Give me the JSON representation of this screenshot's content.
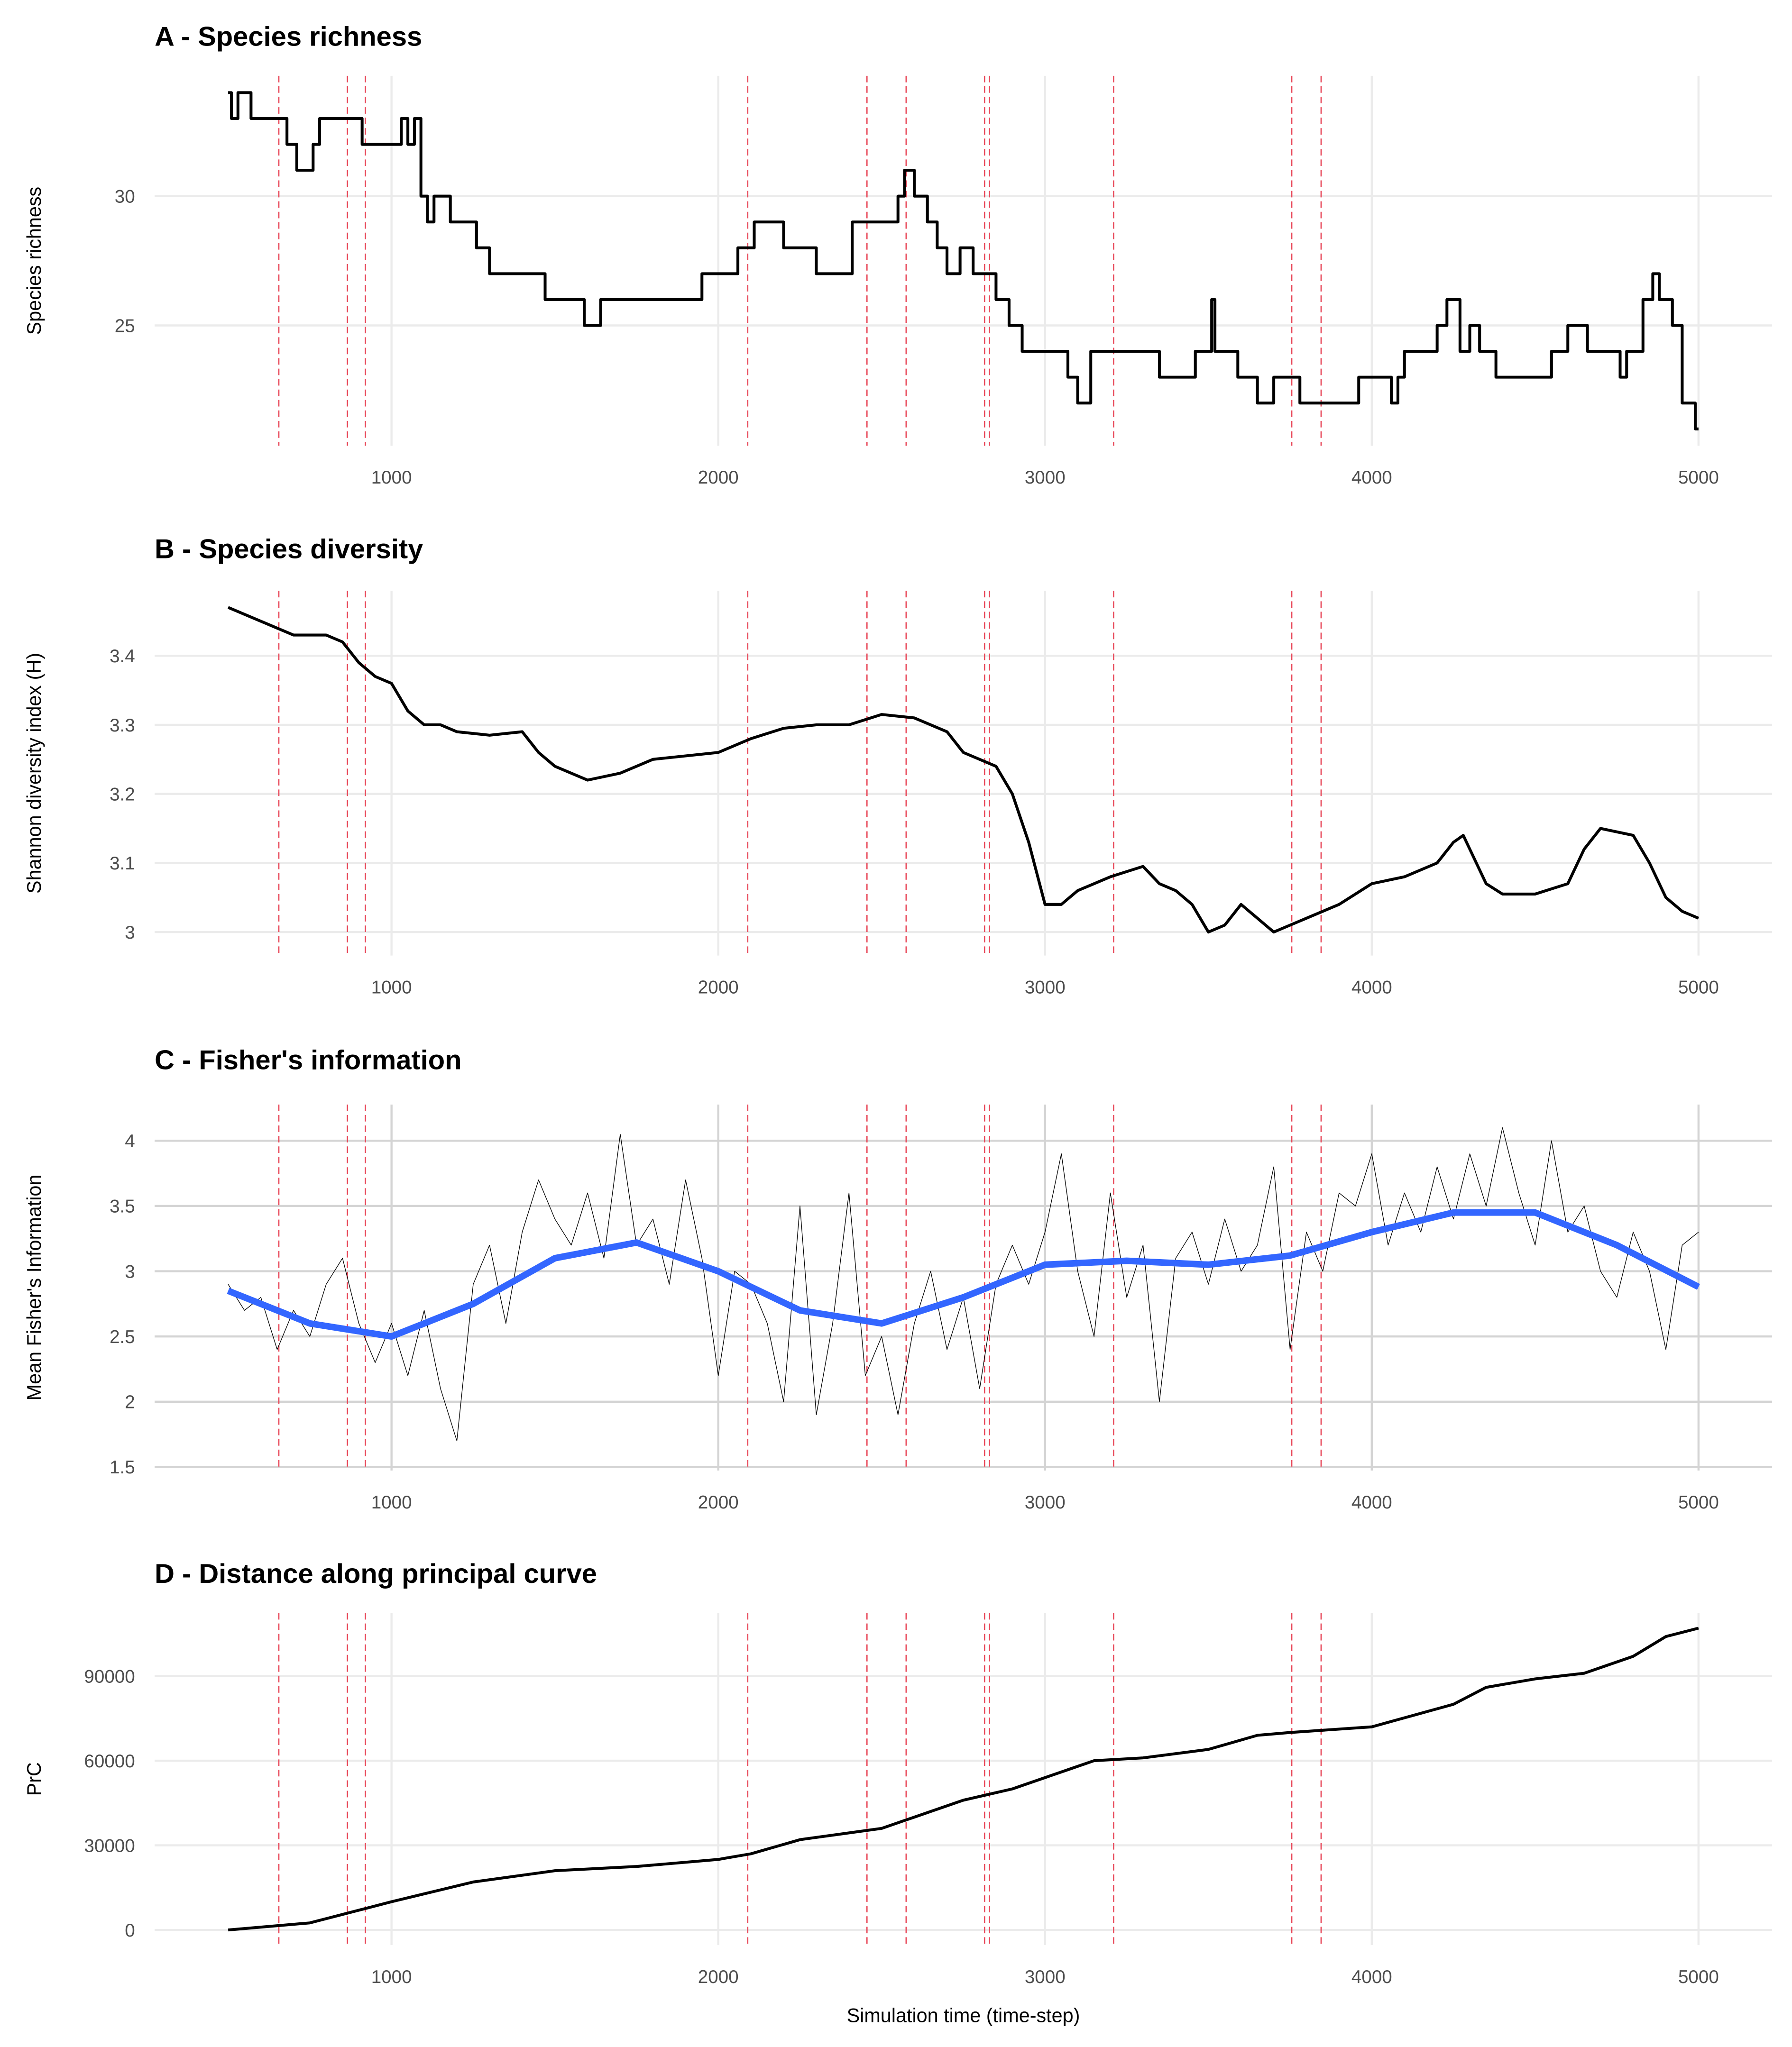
{
  "chart_data": [
    {
      "type": "step",
      "title": "A - Species richness",
      "y_label": "Species richness",
      "x": [
        500,
        510,
        530,
        570,
        680,
        710,
        760,
        780,
        890,
        910,
        1030,
        1050,
        1070,
        1090,
        1110,
        1130,
        1180,
        1260,
        1300,
        1470,
        1590,
        1640,
        1950,
        2060,
        2110,
        2200,
        2300,
        2410,
        2550,
        2570,
        2600,
        2640,
        2670,
        2700,
        2740,
        2780,
        2850,
        2890,
        2930,
        3010,
        3070,
        3100,
        3140,
        3350,
        3460,
        3510,
        3520,
        3590,
        3650,
        3700,
        3780,
        3960,
        4060,
        4080,
        4100,
        4200,
        4230,
        4270,
        4300,
        4330,
        4380,
        4550,
        4600,
        4660,
        4760,
        4780,
        4830,
        4860,
        4880,
        4920,
        4950,
        4990,
        5000
      ],
      "series": [
        {
          "color": "#000000",
          "values": [
            34,
            33,
            34,
            33,
            32,
            31,
            32,
            33,
            33,
            32,
            33,
            32,
            33,
            30,
            29,
            30,
            29,
            28,
            27,
            26,
            25,
            26,
            27,
            28,
            29,
            28,
            27,
            29,
            30,
            31,
            30,
            29,
            28,
            27,
            28,
            27,
            26,
            25,
            24,
            24,
            23,
            22,
            24,
            23,
            24,
            26,
            24,
            23,
            22,
            23,
            22,
            23,
            22,
            23,
            24,
            25,
            26,
            24,
            25,
            24,
            23,
            24,
            25,
            24,
            23,
            24,
            26,
            27,
            26,
            25,
            22,
            21,
            21
          ]
        }
      ],
      "xlim": [
        275,
        5225
      ],
      "xticks": [
        1000,
        2000,
        3000,
        4000,
        5000
      ],
      "ylim": [
        20.35,
        34.65
      ],
      "yticks": [
        25,
        30
      ],
      "vlines": {
        "color": "#e8495a",
        "x": [
          655,
          865,
          920,
          2090,
          2455,
          2575,
          2815,
          2830,
          3210,
          3755,
          3845
        ]
      }
    },
    {
      "type": "line",
      "title": "B - Species diversity",
      "y_label": "Shannon diversity index (H)",
      "x": [
        500,
        600,
        700,
        800,
        850,
        900,
        950,
        1000,
        1050,
        1100,
        1150,
        1200,
        1300,
        1400,
        1450,
        1500,
        1600,
        1700,
        1800,
        1900,
        2000,
        2100,
        2200,
        2300,
        2400,
        2500,
        2600,
        2700,
        2750,
        2850,
        2900,
        2950,
        3000,
        3050,
        3100,
        3200,
        3300,
        3350,
        3400,
        3450,
        3500,
        3550,
        3600,
        3650,
        3700,
        3750,
        3800,
        3900,
        4000,
        4100,
        4200,
        4250,
        4280,
        4300,
        4350,
        4400,
        4500,
        4600,
        4650,
        4700,
        4800,
        4850,
        4900,
        4950,
        5000
      ],
      "series": [
        {
          "color": "#000000",
          "values": [
            3.47,
            3.45,
            3.43,
            3.43,
            3.42,
            3.39,
            3.37,
            3.36,
            3.32,
            3.3,
            3.3,
            3.29,
            3.285,
            3.29,
            3.26,
            3.24,
            3.22,
            3.23,
            3.25,
            3.255,
            3.26,
            3.28,
            3.295,
            3.3,
            3.3,
            3.315,
            3.31,
            3.29,
            3.26,
            3.24,
            3.2,
            3.13,
            3.04,
            3.04,
            3.06,
            3.08,
            3.095,
            3.07,
            3.06,
            3.04,
            3.0,
            3.01,
            3.04,
            3.02,
            3.0,
            3.01,
            3.02,
            3.04,
            3.07,
            3.08,
            3.1,
            3.13,
            3.14,
            3.12,
            3.07,
            3.055,
            3.055,
            3.07,
            3.12,
            3.15,
            3.14,
            3.1,
            3.05,
            3.03,
            3.02
          ]
        }
      ],
      "xlim": [
        275,
        5225
      ],
      "xticks": [
        1000,
        2000,
        3000,
        4000,
        5000
      ],
      "ylim": [
        2.966,
        3.494
      ],
      "yticks": [
        3.0,
        3.1,
        3.2,
        3.3,
        3.4
      ],
      "vlines": {
        "color": "#e8495a",
        "x": [
          655,
          865,
          920,
          2090,
          2455,
          2575,
          2815,
          2830,
          3210,
          3755,
          3845
        ]
      }
    },
    {
      "type": "line",
      "title": "C - Fisher's information",
      "y_label": "Mean Fisher's Information",
      "series": [
        {
          "color": "#000000",
          "width": 0.5,
          "x": [
            500,
            550,
            600,
            650,
            700,
            750,
            800,
            850,
            900,
            950,
            1000,
            1050,
            1100,
            1150,
            1200,
            1250,
            1300,
            1350,
            1400,
            1450,
            1500,
            1550,
            1600,
            1650,
            1700,
            1750,
            1800,
            1850,
            1900,
            1950,
            2000,
            2050,
            2100,
            2150,
            2200,
            2250,
            2300,
            2350,
            2400,
            2450,
            2500,
            2550,
            2600,
            2650,
            2700,
            2750,
            2800,
            2850,
            2900,
            2950,
            3000,
            3050,
            3100,
            3150,
            3200,
            3250,
            3300,
            3350,
            3400,
            3450,
            3500,
            3550,
            3600,
            3650,
            3700,
            3750,
            3800,
            3850,
            3900,
            3950,
            4000,
            4050,
            4100,
            4150,
            4200,
            4250,
            4300,
            4350,
            4400,
            4450,
            4500,
            4550,
            4600,
            4650,
            4700,
            4750,
            4800,
            4850,
            4900,
            4950,
            5000
          ],
          "values": [
            2.9,
            2.7,
            2.8,
            2.4,
            2.7,
            2.5,
            2.9,
            3.1,
            2.6,
            2.3,
            2.6,
            2.2,
            2.7,
            2.1,
            1.7,
            2.9,
            3.2,
            2.6,
            3.3,
            3.7,
            3.4,
            3.2,
            3.6,
            3.1,
            4.05,
            3.2,
            3.4,
            2.9,
            3.7,
            3.1,
            2.2,
            3.0,
            2.9,
            2.6,
            2.0,
            3.5,
            1.9,
            2.6,
            3.6,
            2.2,
            2.5,
            1.9,
            2.6,
            3.0,
            2.4,
            2.8,
            2.1,
            2.9,
            3.2,
            2.9,
            3.3,
            3.9,
            3.0,
            2.5,
            3.6,
            2.8,
            3.2,
            2.0,
            3.1,
            3.3,
            2.9,
            3.4,
            3.0,
            3.2,
            3.8,
            2.4,
            3.3,
            3.0,
            3.6,
            3.5,
            3.9,
            3.2,
            3.6,
            3.3,
            3.8,
            3.4,
            3.9,
            3.5,
            4.1,
            3.6,
            3.2,
            4.0,
            3.3,
            3.5,
            3.0,
            2.8,
            3.3,
            3.0,
            2.4,
            3.2,
            3.3
          ]
        },
        {
          "color": "#3366ff",
          "width": 5,
          "x": [
            500,
            750,
            1000,
            1250,
            1500,
            1750,
            2000,
            2250,
            2500,
            2750,
            3000,
            3250,
            3500,
            3750,
            4000,
            4250,
            4500,
            4750,
            5000
          ],
          "values": [
            2.85,
            2.6,
            2.5,
            2.75,
            3.1,
            3.22,
            3.0,
            2.7,
            2.6,
            2.8,
            3.05,
            3.08,
            3.05,
            3.12,
            3.3,
            3.45,
            3.45,
            3.2,
            2.88
          ]
        }
      ],
      "xlim": [
        275,
        5225
      ],
      "xticks": [
        1000,
        2000,
        3000,
        4000,
        5000
      ],
      "ylim": [
        1.4725,
        4.2775
      ],
      "yticks": [
        1.5,
        2.0,
        2.5,
        3.0,
        3.5,
        4.0
      ],
      "vlines": {
        "color": "#e8495a",
        "x": [
          655,
          865,
          920,
          2090,
          2455,
          2575,
          2815,
          2830,
          3210,
          3755,
          3845
        ]
      }
    },
    {
      "type": "line",
      "title": "D - Distance along principal curve",
      "y_label": "PrC",
      "x_label": "Simulation time (time-step)",
      "x": [
        500,
        750,
        900,
        1000,
        1250,
        1500,
        1750,
        2000,
        2100,
        2250,
        2500,
        2600,
        2750,
        2900,
        3000,
        3150,
        3300,
        3500,
        3650,
        3750,
        4000,
        4250,
        4350,
        4500,
        4650,
        4800,
        4900,
        5000
      ],
      "series": [
        {
          "color": "#000000",
          "values": [
            0,
            2500,
            7000,
            10000,
            17000,
            21000,
            22500,
            25000,
            27000,
            32000,
            36000,
            40000,
            46000,
            50000,
            54000,
            60000,
            61000,
            64000,
            69000,
            70000,
            72000,
            80000,
            86000,
            89000,
            91000,
            97000,
            104000,
            107000
          ]
        }
      ],
      "xlim": [
        275,
        5225
      ],
      "xticks": [
        1000,
        2000,
        3000,
        4000,
        5000
      ],
      "ylim": [
        -5350,
        112350
      ],
      "yticks": [
        0,
        30000,
        60000,
        90000
      ],
      "vlines": {
        "color": "#e8495a",
        "x": [
          655,
          865,
          920,
          2090,
          2455,
          2575,
          2815,
          2830,
          3210,
          3755,
          3845
        ]
      }
    }
  ]
}
